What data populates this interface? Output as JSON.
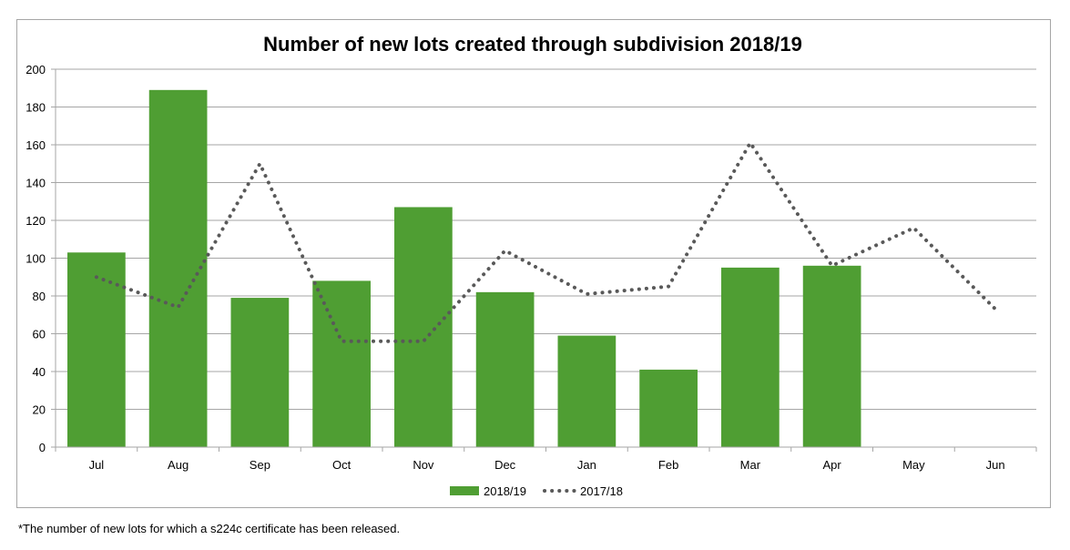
{
  "chart_data": {
    "type": "bar",
    "title": "Number of new lots created through subdivision 2018/19",
    "categories": [
      "Jul",
      "Aug",
      "Sep",
      "Oct",
      "Nov",
      "Dec",
      "Jan",
      "Feb",
      "Mar",
      "Apr",
      "May",
      "Jun"
    ],
    "ylim": [
      0,
      200
    ],
    "yticks": [
      0,
      20,
      40,
      60,
      80,
      100,
      120,
      140,
      160,
      180,
      200
    ],
    "grid": true,
    "legend_position": "bottom",
    "series": [
      {
        "name": "2018/19",
        "type": "bar",
        "color": "#4f9e33",
        "values": [
          103,
          189,
          79,
          88,
          127,
          82,
          59,
          41,
          95,
          96,
          null,
          null
        ]
      },
      {
        "name": "2017/18",
        "type": "line",
        "style": "dotted",
        "color": "#595959",
        "values": [
          90,
          74,
          150,
          56,
          56,
          104,
          81,
          85,
          161,
          96,
          116,
          73
        ]
      }
    ]
  },
  "footnote": "*The number of new lots for which a s224c certificate has been released."
}
